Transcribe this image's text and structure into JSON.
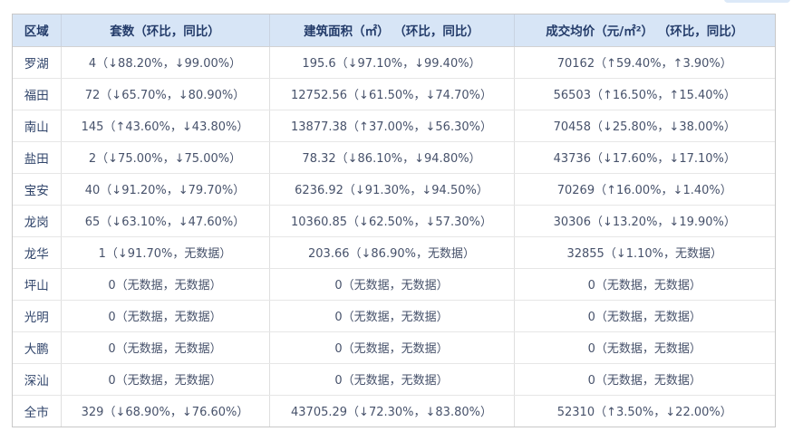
{
  "colors": {
    "header_bg": "#d7e5f6",
    "header_text": "#243c6a",
    "body_text": "#47526b",
    "border_outer": "#c8c8c8",
    "border_inner": "#e6e6e6",
    "partial_button": "#dce9f8"
  },
  "table": {
    "columns": [
      {
        "label": "区域"
      },
      {
        "label": "套数（环比，同比）"
      },
      {
        "label": "建筑面积（㎡） （环比，同比）"
      },
      {
        "label": "成交均价（元/㎡²） （环比，同比）"
      }
    ],
    "rows": [
      {
        "region": "罗湖",
        "units": "4（↓88.20%，↓99.00%）",
        "area": "195.6（↓97.10%，↓99.40%）",
        "price": "70162（↑59.40%，↑3.90%）"
      },
      {
        "region": "福田",
        "units": "72（↓65.70%，↓80.90%）",
        "area": "12752.56（↓61.50%，↓74.70%）",
        "price": "56503（↑16.50%，↑15.40%）"
      },
      {
        "region": "南山",
        "units": "145（↑43.60%，↓43.80%）",
        "area": "13877.38（↑37.00%，↓56.30%）",
        "price": "70458（↓25.80%，↓38.00%）"
      },
      {
        "region": "盐田",
        "units": "2（↓75.00%，↓75.00%）",
        "area": "78.32（↓86.10%，↓94.80%）",
        "price": "43736（↓17.60%，↓17.10%）"
      },
      {
        "region": "宝安",
        "units": "40（↓91.20%，↓79.70%）",
        "area": "6236.92（↓91.30%，↓94.50%）",
        "price": "70269（↑16.00%，↓1.40%）"
      },
      {
        "region": "龙岗",
        "units": "65（↓63.10%，↓47.60%）",
        "area": "10360.85（↓62.50%，↓57.30%）",
        "price": "30306（↓13.20%，↓19.90%）"
      },
      {
        "region": "龙华",
        "units": "1（↓91.70%，无数据）",
        "area": "203.66（↓86.90%，无数据）",
        "price": "32855（↓1.10%，无数据）"
      },
      {
        "region": "坪山",
        "units": "0（无数据，无数据）",
        "area": "0（无数据，无数据）",
        "price": "0（无数据，无数据）"
      },
      {
        "region": "光明",
        "units": "0（无数据，无数据）",
        "area": "0（无数据，无数据）",
        "price": "0（无数据，无数据）"
      },
      {
        "region": "大鹏",
        "units": "0（无数据，无数据）",
        "area": "0（无数据，无数据）",
        "price": "0（无数据，无数据）"
      },
      {
        "region": "深汕",
        "units": "0（无数据，无数据）",
        "area": "0（无数据，无数据）",
        "price": "0（无数据，无数据）"
      },
      {
        "region": "全市",
        "units": "329（↓68.90%，↓76.60%）",
        "area": "43705.29（↓72.30%，↓83.80%）",
        "price": "52310（↑3.50%，↓22.00%）"
      }
    ]
  }
}
